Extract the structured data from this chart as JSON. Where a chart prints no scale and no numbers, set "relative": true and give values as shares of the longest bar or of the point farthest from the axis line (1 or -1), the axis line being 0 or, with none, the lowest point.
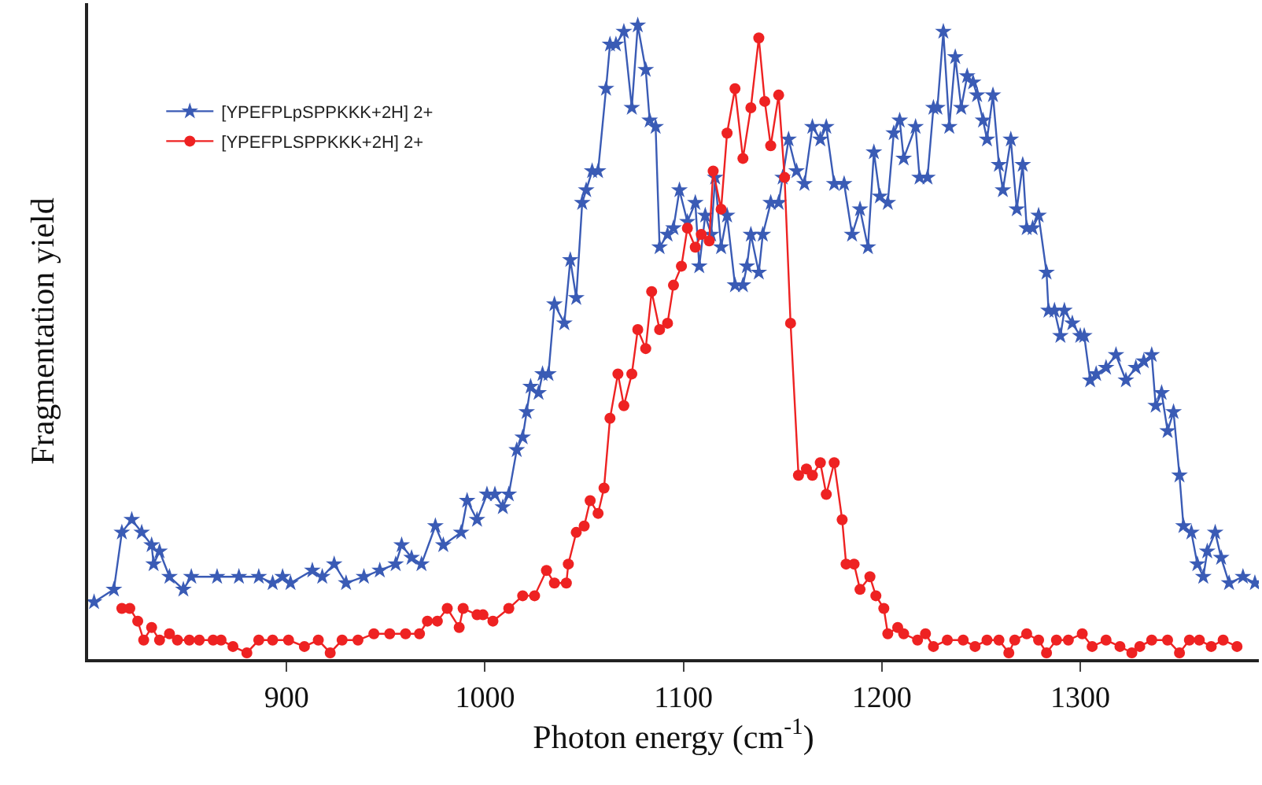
{
  "chart_data": {
    "type": "line",
    "relative": true,
    "xlabel": "Photon energy (cm$^{-1}$)",
    "ylabel": "Fragmentation yield",
    "xlim": [
      800,
      1390
    ],
    "xticks": [
      900,
      1000,
      1100,
      1200,
      1300
    ],
    "legend": "top left",
    "line_style": "solid",
    "tick_labels": "x",
    "series": [
      {
        "name": "[YPEFPLpSPPKKK+2H] 2+",
        "color": "#3a5bb5",
        "marker": "star",
        "x": [
          803,
          813,
          817,
          822,
          827,
          832,
          833,
          836,
          841,
          848,
          852,
          865,
          876,
          886,
          893,
          898,
          902,
          913,
          918,
          924,
          930,
          939,
          947,
          955,
          958,
          963,
          968,
          975,
          979,
          988,
          991,
          996,
          1001,
          1005,
          1009,
          1012,
          1016,
          1019,
          1021,
          1023,
          1027,
          1029,
          1032,
          1035,
          1040,
          1043,
          1046,
          1049,
          1051,
          1054,
          1057,
          1061,
          1063,
          1066,
          1070,
          1074,
          1077,
          1081,
          1083,
          1086,
          1088,
          1092,
          1095,
          1098,
          1102,
          1106,
          1108,
          1111,
          1114,
          1116,
          1119,
          1122,
          1126,
          1130,
          1132,
          1134,
          1138,
          1140,
          1144,
          1148,
          1150,
          1153,
          1157,
          1161,
          1165,
          1169,
          1172,
          1176,
          1181,
          1185,
          1189,
          1193,
          1196,
          1199,
          1203,
          1206,
          1209,
          1211,
          1217,
          1219,
          1223,
          1226,
          1228,
          1231,
          1234,
          1237,
          1240,
          1243,
          1246,
          1248,
          1251,
          1253,
          1256,
          1259,
          1261,
          1265,
          1268,
          1271,
          1273,
          1276,
          1279,
          1283,
          1284,
          1287,
          1290,
          1292,
          1296,
          1300,
          1302,
          1305,
          1308,
          1313,
          1318,
          1323,
          1328,
          1332,
          1336,
          1338,
          1341,
          1344,
          1347,
          1350,
          1352,
          1356,
          1359,
          1362,
          1364,
          1368,
          1371,
          1375,
          1382,
          1388
        ],
        "values": [
          0.09,
          0.11,
          0.2,
          0.22,
          0.2,
          0.18,
          0.15,
          0.17,
          0.13,
          0.11,
          0.13,
          0.13,
          0.13,
          0.13,
          0.12,
          0.13,
          0.12,
          0.14,
          0.13,
          0.15,
          0.12,
          0.13,
          0.14,
          0.15,
          0.18,
          0.16,
          0.15,
          0.21,
          0.18,
          0.2,
          0.25,
          0.22,
          0.26,
          0.26,
          0.24,
          0.26,
          0.33,
          0.35,
          0.39,
          0.43,
          0.42,
          0.45,
          0.45,
          0.56,
          0.53,
          0.63,
          0.57,
          0.72,
          0.74,
          0.77,
          0.77,
          0.9,
          0.97,
          0.97,
          0.99,
          0.87,
          1.0,
          0.93,
          0.85,
          0.84,
          0.65,
          0.67,
          0.68,
          0.74,
          0.69,
          0.72,
          0.62,
          0.7,
          0.67,
          0.76,
          0.65,
          0.7,
          0.59,
          0.59,
          0.62,
          0.67,
          0.61,
          0.67,
          0.72,
          0.72,
          0.76,
          0.82,
          0.77,
          0.75,
          0.84,
          0.82,
          0.84,
          0.75,
          0.75,
          0.67,
          0.71,
          0.65,
          0.8,
          0.73,
          0.72,
          0.83,
          0.85,
          0.79,
          0.84,
          0.76,
          0.76,
          0.87,
          0.87,
          0.99,
          0.84,
          0.95,
          0.87,
          0.92,
          0.91,
          0.89,
          0.85,
          0.82,
          0.89,
          0.78,
          0.74,
          0.82,
          0.71,
          0.78,
          0.68,
          0.68,
          0.7,
          0.61,
          0.55,
          0.55,
          0.51,
          0.55,
          0.53,
          0.51,
          0.51,
          0.44,
          0.45,
          0.46,
          0.48,
          0.44,
          0.46,
          0.47,
          0.48,
          0.4,
          0.42,
          0.36,
          0.39,
          0.29,
          0.21,
          0.2,
          0.15,
          0.13,
          0.17,
          0.2,
          0.16,
          0.12,
          0.13,
          0.12
        ]
      },
      {
        "name": "[YPEFPLSPPKKK+2H] 2+",
        "color": "#ee2222",
        "marker": "circle",
        "x": [
          817,
          821,
          825,
          828,
          832,
          836,
          841,
          845,
          851,
          856,
          863,
          867,
          873,
          880,
          886,
          893,
          901,
          909,
          916,
          922,
          928,
          936,
          944,
          952,
          960,
          967,
          971,
          976,
          981,
          987,
          989,
          996,
          999,
          1004,
          1012,
          1019,
          1025,
          1031,
          1035,
          1041,
          1042,
          1046,
          1050,
          1053,
          1057,
          1060,
          1063,
          1067,
          1070,
          1074,
          1077,
          1081,
          1084,
          1088,
          1092,
          1095,
          1099,
          1102,
          1106,
          1109,
          1113,
          1115,
          1119,
          1122,
          1126,
          1130,
          1134,
          1138,
          1141,
          1144,
          1148,
          1151,
          1154,
          1158,
          1162,
          1165,
          1169,
          1172,
          1176,
          1180,
          1182,
          1186,
          1189,
          1194,
          1197,
          1201,
          1203,
          1208,
          1211,
          1218,
          1222,
          1226,
          1233,
          1241,
          1247,
          1253,
          1259,
          1264,
          1267,
          1273,
          1279,
          1283,
          1288,
          1294,
          1301,
          1306,
          1313,
          1320,
          1326,
          1330,
          1336,
          1344,
          1350,
          1355,
          1360,
          1366,
          1372,
          1379
        ],
        "values": [
          0.08,
          0.08,
          0.06,
          0.03,
          0.05,
          0.03,
          0.04,
          0.03,
          0.03,
          0.03,
          0.03,
          0.03,
          0.02,
          0.01,
          0.03,
          0.03,
          0.03,
          0.02,
          0.03,
          0.01,
          0.03,
          0.03,
          0.04,
          0.04,
          0.04,
          0.04,
          0.06,
          0.06,
          0.08,
          0.05,
          0.08,
          0.07,
          0.07,
          0.06,
          0.08,
          0.1,
          0.1,
          0.14,
          0.12,
          0.12,
          0.15,
          0.2,
          0.21,
          0.25,
          0.23,
          0.27,
          0.38,
          0.45,
          0.4,
          0.45,
          0.52,
          0.49,
          0.58,
          0.52,
          0.53,
          0.59,
          0.62,
          0.68,
          0.65,
          0.67,
          0.66,
          0.77,
          0.71,
          0.83,
          0.9,
          0.79,
          0.87,
          0.98,
          0.88,
          0.81,
          0.89,
          0.76,
          0.53,
          0.29,
          0.3,
          0.29,
          0.31,
          0.26,
          0.31,
          0.22,
          0.15,
          0.15,
          0.11,
          0.13,
          0.1,
          0.08,
          0.04,
          0.05,
          0.04,
          0.03,
          0.04,
          0.02,
          0.03,
          0.03,
          0.02,
          0.03,
          0.03,
          0.01,
          0.03,
          0.04,
          0.03,
          0.01,
          0.03,
          0.03,
          0.04,
          0.02,
          0.03,
          0.02,
          0.01,
          0.02,
          0.03,
          0.03,
          0.01,
          0.03,
          0.03,
          0.02,
          0.03,
          0.02
        ]
      }
    ]
  }
}
